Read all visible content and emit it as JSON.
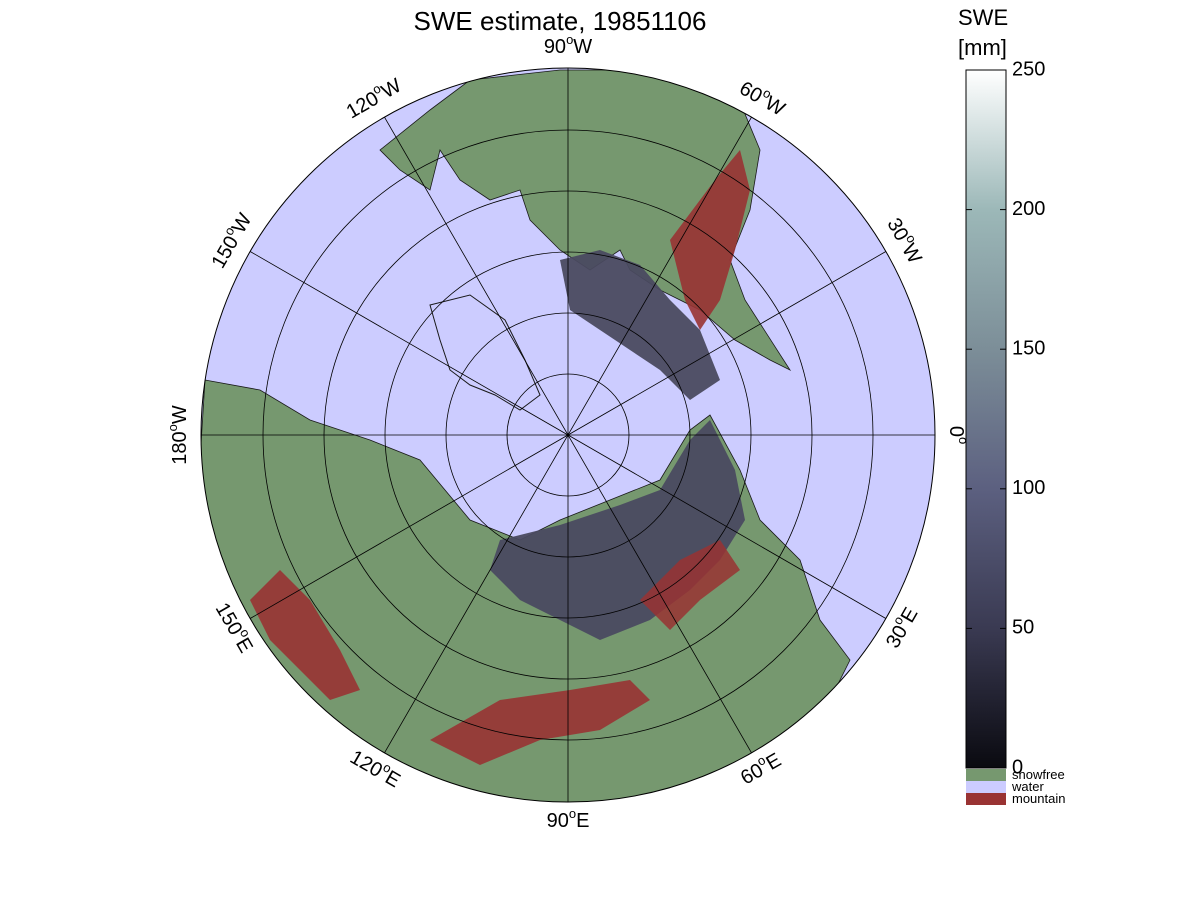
{
  "title": "SWE estimate, 19851106",
  "longitude_labels": [
    {
      "id": "lon-90w",
      "text": "90",
      "suffix": "W",
      "angle_deg": 90
    },
    {
      "id": "lon-60w",
      "text": "60",
      "suffix": "W",
      "angle_deg": 60
    },
    {
      "id": "lon-30w",
      "text": "30",
      "suffix": "W",
      "angle_deg": 30
    },
    {
      "id": "lon-0",
      "text": "0",
      "suffix": "",
      "angle_deg": 0
    },
    {
      "id": "lon-30e",
      "text": "30",
      "suffix": "E",
      "angle_deg": -30
    },
    {
      "id": "lon-60e",
      "text": "60",
      "suffix": "E",
      "angle_deg": -60
    },
    {
      "id": "lon-90e",
      "text": "90",
      "suffix": "E",
      "angle_deg": -90
    },
    {
      "id": "lon-120e",
      "text": "120",
      "suffix": "E",
      "angle_deg": -120
    },
    {
      "id": "lon-150e",
      "text": "150",
      "suffix": "E",
      "angle_deg": -150
    },
    {
      "id": "lon-180w",
      "text": "180",
      "suffix": "W",
      "angle_deg": 180
    },
    {
      "id": "lon-150w",
      "text": "150",
      "suffix": "W",
      "angle_deg": 150
    },
    {
      "id": "lon-120w",
      "text": "120",
      "suffix": "W",
      "angle_deg": 120
    }
  ],
  "colorbar": {
    "title_line1": "SWE",
    "title_line2": "[mm]",
    "ticks": [
      {
        "value": 0,
        "label": "0"
      },
      {
        "value": 50,
        "label": "50"
      },
      {
        "value": 100,
        "label": "100"
      },
      {
        "value": 150,
        "label": "150"
      },
      {
        "value": 200,
        "label": "200"
      },
      {
        "value": 250,
        "label": "250"
      }
    ],
    "range": [
      0,
      250
    ],
    "color_stops": [
      "#0a0a10",
      "#3a3a52",
      "#5c6080",
      "#7c8e98",
      "#9cb8b8",
      "#ffffff"
    ],
    "categories": [
      {
        "label": "snowfree",
        "color": "#76986f"
      },
      {
        "label": "water",
        "color": "#ccccff"
      },
      {
        "label": "mountain",
        "color": "#993333"
      }
    ]
  },
  "colors": {
    "water": "#ccccff",
    "land": "#76986f",
    "mountain": "#993333",
    "snow": "#4a4a60"
  }
}
